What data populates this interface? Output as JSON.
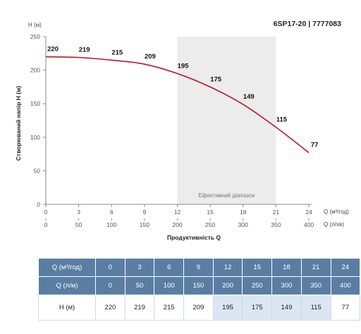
{
  "model": "6SP17-20 | 7777083",
  "colors": {
    "curve": "#c0142b",
    "band": "#ececec",
    "table_header": "#5a7ea3",
    "table_highlight": "#dbe6f5"
  },
  "chart_data": {
    "type": "line",
    "title": "6SP17-20 | 7777083",
    "ylabel": "Створюваний напір Н (м)",
    "y_unit_label": "Н (м)",
    "xlabel": "Продуктивність Q",
    "x_unit_label_1": "Q (м³/год)",
    "x_unit_label_2": "Q (л/хв)",
    "ylim": [
      0,
      250
    ],
    "xlim": [
      0,
      24
    ],
    "y_ticks": [
      "0",
      "50",
      "100",
      "150",
      "200",
      "250"
    ],
    "x_ticks_m3h": [
      "0",
      "3",
      "6",
      "9",
      "12",
      "15",
      "18",
      "21",
      "24"
    ],
    "x_ticks_lmin": [
      "0",
      "50",
      "100",
      "150",
      "200",
      "250",
      "300",
      "350",
      "400"
    ],
    "band_label": "Ефективний діапазон",
    "band_range": [
      12,
      21
    ],
    "x": [
      0,
      3,
      6,
      9,
      12,
      15,
      18,
      21,
      24
    ],
    "series": [
      {
        "values": [
          220,
          219,
          215,
          209,
          195,
          175,
          149,
          115,
          77
        ]
      }
    ],
    "grid": false,
    "legend": "none"
  },
  "table": {
    "row_labels": [
      "Q (м³/год)",
      "Q (л/м)",
      "Н (м)"
    ],
    "q_m3h": [
      "0",
      "3",
      "6",
      "9",
      "12",
      "15",
      "18",
      "21",
      "24"
    ],
    "q_lmin": [
      "0",
      "50",
      "100",
      "150",
      "200",
      "250",
      "300",
      "350",
      "400"
    ],
    "head": [
      "220",
      "219",
      "215",
      "209",
      "195",
      "175",
      "149",
      "115",
      "77"
    ],
    "highlighted": [
      false,
      false,
      false,
      false,
      true,
      true,
      true,
      true,
      false
    ]
  }
}
